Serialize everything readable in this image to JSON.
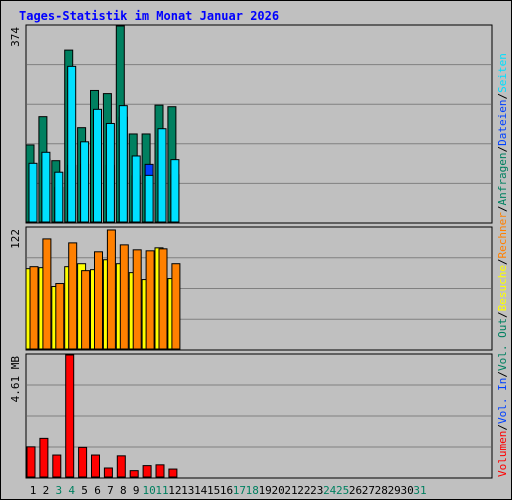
{
  "title": "Tages-Statistik im Monat Januar 2026",
  "colors": {
    "title": "#0000ff",
    "panel_bg": "#c0c0c0",
    "grid": "#808080",
    "hits": "#008060",
    "files": "#0040ff",
    "pages": "#00e0ff",
    "visits": "#ffff00",
    "sites": "#ff8000",
    "kbin": "#0040ff",
    "kbout": "#008060",
    "volume": "#ff0000",
    "weekend": "#008060",
    "dark_edge": "#000000"
  },
  "chart_data": [
    {
      "type": "bar",
      "title": "",
      "ymax_label": "374",
      "ylim": [
        0,
        374
      ],
      "right_labels": [
        {
          "text": "Anfragen",
          "color": "#008060"
        },
        {
          "text": "Dateien",
          "color": "#0040ff"
        },
        {
          "text": "Seiten",
          "color": "#00e0ff"
        }
      ],
      "x": [
        "1",
        "2",
        "3",
        "4",
        "5",
        "6",
        "7",
        "8",
        "9",
        "10",
        "11",
        "12",
        "13",
        "14",
        "15",
        "16",
        "17",
        "18",
        "19",
        "20",
        "21",
        "22",
        "23",
        "24",
        "25",
        "26",
        "27",
        "28",
        "29",
        "30",
        "31"
      ],
      "series": [
        {
          "name": "Anfragen",
          "values": [
            147,
            201,
            117,
            328,
            180,
            251,
            245,
            374,
            168,
            168,
            223,
            220,
            0,
            0,
            0,
            0,
            0,
            0,
            0,
            0,
            0,
            0,
            0,
            0,
            0,
            0,
            0,
            0,
            0,
            0,
            0
          ]
        },
        {
          "name": "Dateien",
          "values": [
            95,
            120,
            66,
            108,
            110,
            180,
            108,
            200,
            88,
            110,
            108,
            90,
            0,
            0,
            0,
            0,
            0,
            0,
            0,
            0,
            0,
            0,
            0,
            0,
            0,
            0,
            0,
            0,
            0,
            0,
            0
          ]
        },
        {
          "name": "Seiten",
          "values": [
            112,
            133,
            95,
            297,
            153,
            215,
            188,
            222,
            126,
            89,
            178,
            119,
            0,
            0,
            0,
            0,
            0,
            0,
            0,
            0,
            0,
            0,
            0,
            0,
            0,
            0,
            0,
            0,
            0,
            0,
            0
          ]
        }
      ]
    },
    {
      "type": "bar",
      "title": "",
      "ymax_label": "122",
      "ylim": [
        0,
        122
      ],
      "right_labels": [
        {
          "text": "Besuche",
          "color": "#ffff00"
        },
        {
          "text": "Rechner",
          "color": "#ff8000"
        }
      ],
      "x": [
        "1",
        "2",
        "3",
        "4",
        "5",
        "6",
        "7",
        "8",
        "9",
        "10",
        "11",
        "12",
        "13",
        "14",
        "15",
        "16",
        "17",
        "18",
        "19",
        "20",
        "21",
        "22",
        "23",
        "24",
        "25",
        "26",
        "27",
        "28",
        "29",
        "30",
        "31"
      ],
      "series": [
        {
          "name": "Besuche",
          "values": [
            81,
            82,
            63,
            83,
            86,
            80,
            90,
            86,
            77,
            70,
            102,
            71,
            0,
            0,
            0,
            0,
            0,
            0,
            0,
            0,
            0,
            0,
            0,
            0,
            0,
            0,
            0,
            0,
            0,
            0,
            0
          ]
        },
        {
          "name": "Rechner",
          "values": [
            83,
            111,
            66,
            107,
            79,
            98,
            120,
            105,
            100,
            99,
            101,
            86,
            0,
            0,
            0,
            0,
            0,
            0,
            0,
            0,
            0,
            0,
            0,
            0,
            0,
            0,
            0,
            0,
            0,
            0,
            0
          ]
        }
      ]
    },
    {
      "type": "bar",
      "title": "",
      "ymax_label": "4.61 MB",
      "ylim": [
        0,
        4.61
      ],
      "right_labels": [
        {
          "text": "Volumen",
          "color": "#ff0000"
        },
        {
          "text": "Vol. In",
          "color": "#0040ff"
        },
        {
          "text": "Vol. Out",
          "color": "#008060"
        }
      ],
      "x": [
        "1",
        "2",
        "3",
        "4",
        "5",
        "6",
        "7",
        "8",
        "9",
        "10",
        "11",
        "12",
        "13",
        "14",
        "15",
        "16",
        "17",
        "18",
        "19",
        "20",
        "21",
        "22",
        "23",
        "24",
        "25",
        "26",
        "27",
        "28",
        "29",
        "30",
        "31"
      ],
      "series": [
        {
          "name": "Volumen",
          "values": [
            1.14,
            1.46,
            0.83,
            4.61,
            1.12,
            0.83,
            0.34,
            0.8,
            0.24,
            0.43,
            0.46,
            0.3,
            0,
            0,
            0,
            0,
            0,
            0,
            0,
            0,
            0,
            0,
            0,
            0,
            0,
            0,
            0,
            0,
            0,
            0,
            0
          ]
        }
      ]
    }
  ],
  "x_labels": [
    "1",
    "2",
    "3",
    "4",
    "5",
    "6",
    "7",
    "8",
    "9",
    "10",
    "11",
    "12",
    "13",
    "14",
    "15",
    "16",
    "17",
    "18",
    "19",
    "20",
    "21",
    "22",
    "23",
    "24",
    "25",
    "26",
    "27",
    "28",
    "29",
    "30",
    "31"
  ],
  "weekend_days": [
    "3",
    "4",
    "10",
    "11",
    "17",
    "18",
    "24",
    "25",
    "31"
  ]
}
